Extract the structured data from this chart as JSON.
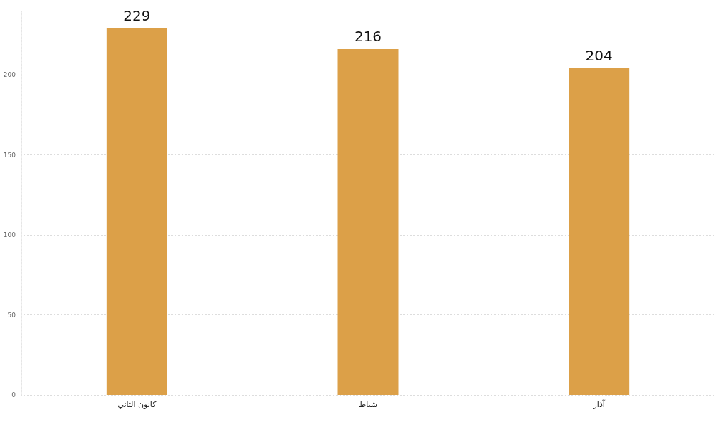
{
  "chart_data": {
    "type": "bar",
    "categories": [
      "كانون الثاني",
      "شباط",
      "آذار"
    ],
    "values": [
      229,
      216,
      204
    ],
    "color": "#dca048",
    "ylim": [
      0,
      240
    ],
    "yticks": [
      0,
      50,
      100,
      150,
      200
    ],
    "grid": "y",
    "data_labels": true
  }
}
